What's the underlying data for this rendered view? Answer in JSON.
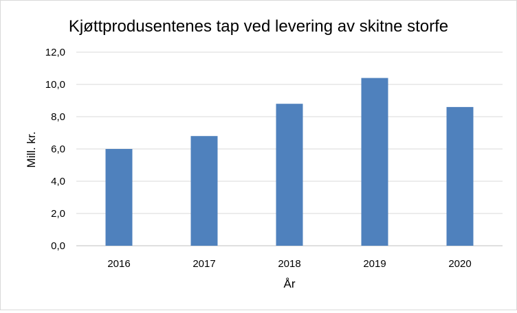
{
  "chart_data": {
    "type": "bar",
    "title": "Kjøttprodusentenes tap ved levering av skitne storfe",
    "xlabel": "År",
    "ylabel": "Mill. kr.",
    "categories": [
      "2016",
      "2017",
      "2018",
      "2019",
      "2020"
    ],
    "values": [
      6.0,
      6.8,
      8.8,
      10.4,
      8.6
    ],
    "ylim": [
      0,
      12
    ],
    "yticks": [
      "0,0",
      "2,0",
      "4,0",
      "6,0",
      "8,0",
      "10,0",
      "12,0"
    ],
    "grid": true,
    "legend": "none",
    "bar_color": "#4f81bd"
  }
}
